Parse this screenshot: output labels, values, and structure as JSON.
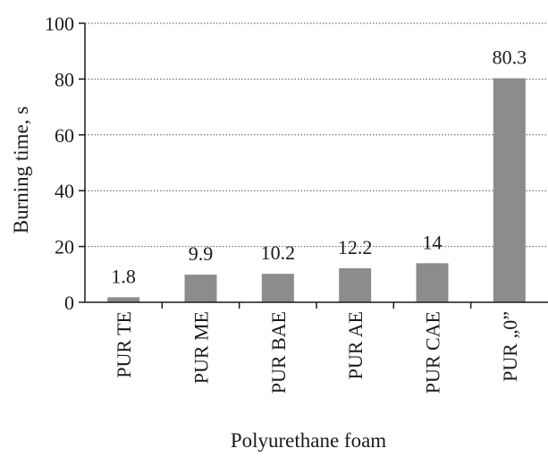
{
  "chart_data": {
    "type": "bar",
    "title": "",
    "xlabel": "Polyurethane foam",
    "ylabel": "Burning time, s",
    "categories": [
      "PUR TE",
      "PUR ME",
      "PUR BAE",
      "PUR AE",
      "PUR CAE",
      "PUR „0”"
    ],
    "values": [
      1.8,
      9.9,
      10.2,
      12.2,
      14,
      80.3
    ],
    "data_labels": [
      "1.8",
      "9.9",
      "10.2",
      "12.2",
      "14",
      "80.3"
    ],
    "ylim": [
      0,
      100
    ],
    "yticks": [
      0,
      20,
      40,
      60,
      80,
      100
    ],
    "grid": "horizontal-dotted",
    "legend": "none",
    "colors": {
      "bar": "#8c8c8c",
      "axis": "#1a1a1a",
      "grid": "#555555"
    }
  }
}
